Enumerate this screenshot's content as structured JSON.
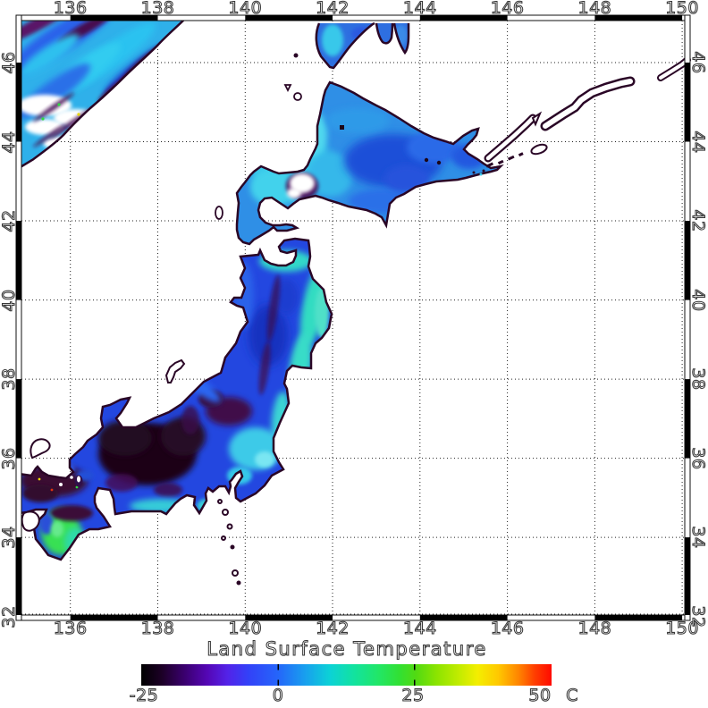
{
  "title": "Land Surface Temperature",
  "axes": {
    "x_tick_labels": [
      "136",
      "138",
      "140",
      "142",
      "144",
      "146",
      "148",
      "150"
    ],
    "y_tick_labels": [
      "46",
      "44",
      "42",
      "40",
      "38",
      "36",
      "34",
      "32"
    ]
  },
  "colorbar": {
    "tick_labels": [
      "-25",
      "0",
      "25",
      "50"
    ],
    "tick_values": [
      -25,
      0,
      25,
      50
    ],
    "unit": "C",
    "min": -25,
    "max": 50
  },
  "palette": {
    "outline": "#2a0626",
    "sib": "#2fb0ea",
    "sak": "#2e6fe0",
    "hok": "#2f8fe6",
    "hon": "#2347e0",
    "cyan1": "#38c8ea",
    "cyan2": "#35dfc8",
    "cyanL": "#66e2f0",
    "teal": "#2fd9a8",
    "green": "#38e052",
    "navy": "#1733c0",
    "blue2": "#2a62ea",
    "purp": "#45105a",
    "darkp": "#3a0d40",
    "black1": "#1c0618",
    "maroon": "#3a0d33",
    "speckY": "#e8d800",
    "speckR": "#e03010",
    "speckG": "#30d840",
    "cb0": "#000000",
    "cb1": "#1c0026",
    "cb2": "#3a006e",
    "cb3": "#5406b4",
    "cb4": "#5322e8",
    "cb5": "#3341f8",
    "cb6": "#2565fa",
    "cb7": "#18a0ee",
    "cb8": "#0cd2d6",
    "cb9": "#12e39e",
    "cb10": "#22e665",
    "cb11": "#32e032",
    "cb12": "#52da12",
    "cb13": "#8ce400",
    "cb14": "#c8ec00",
    "cb15": "#f4ee00",
    "cb16": "#ffc800",
    "cb17": "#ff8400",
    "cb18": "#ff3c00",
    "cb19": "#ff0a00"
  }
}
